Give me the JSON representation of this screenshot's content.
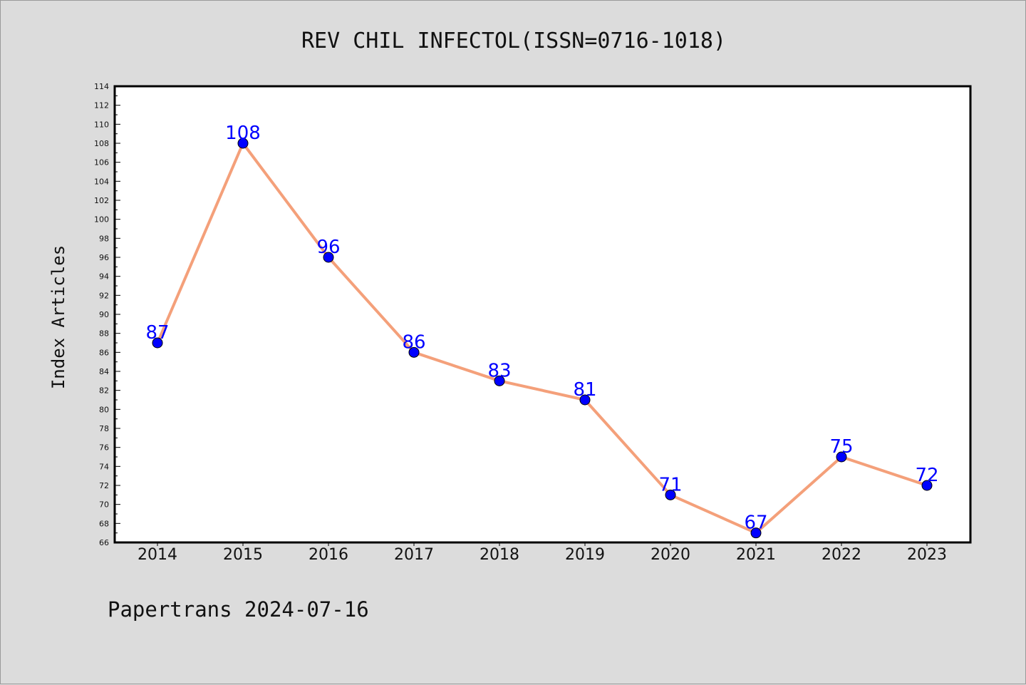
{
  "chart_data": {
    "type": "line",
    "title": "REV CHIL INFECTOL(ISSN=0716-1018)",
    "xlabel": "",
    "ylabel": "Index Articles",
    "categories": [
      "2014",
      "2015",
      "2016",
      "2017",
      "2018",
      "2019",
      "2020",
      "2021",
      "2022",
      "2023"
    ],
    "values": [
      87,
      108,
      96,
      86,
      83,
      81,
      71,
      67,
      75,
      72
    ],
    "data_labels": [
      "87",
      "108",
      "96",
      "86",
      "83",
      "81",
      "71",
      "67",
      "75",
      "72"
    ],
    "ylim": [
      66,
      114
    ],
    "ytick_step": 2,
    "grid": false,
    "legend": "none",
    "line_color": "#f4a07a",
    "marker_color": "#0000ff",
    "label_color": "#0000ff"
  },
  "footer": "Papertrans 2024-07-16"
}
